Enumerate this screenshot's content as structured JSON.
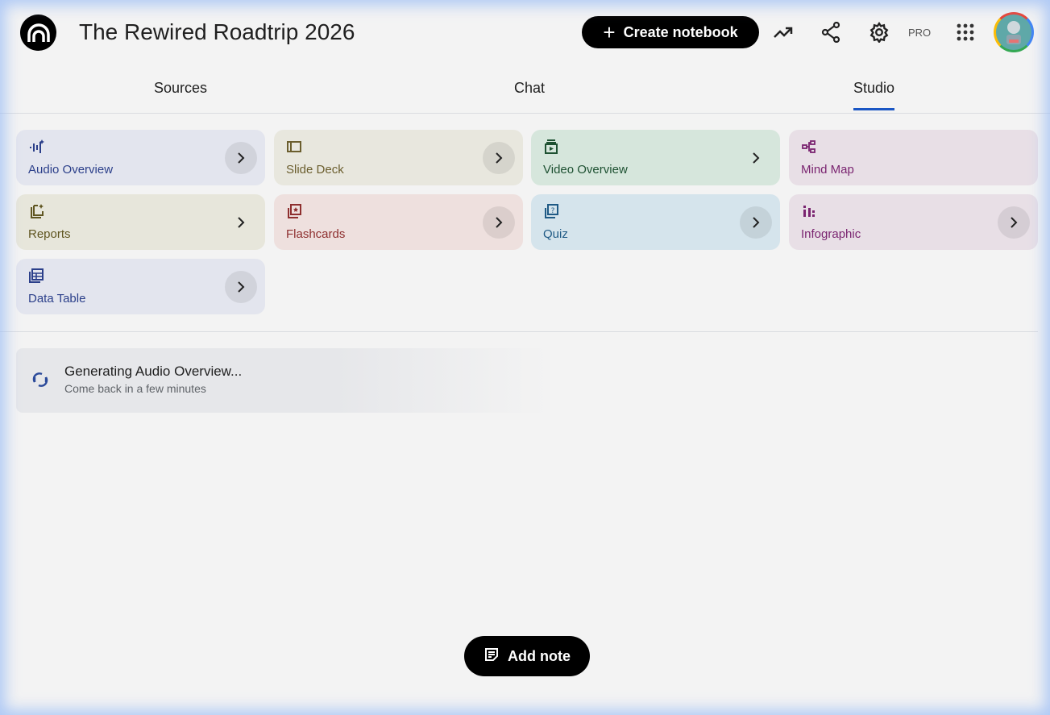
{
  "header": {
    "title": "The Rewired Roadtrip 2026",
    "create_label": "Create notebook",
    "pro_label": "PRO"
  },
  "tabs": [
    {
      "label": "Sources"
    },
    {
      "label": "Chat"
    },
    {
      "label": "Studio",
      "active": true
    }
  ],
  "studio_tools": [
    {
      "label": "Audio Overview",
      "icon": "audio-waveform-icon",
      "bg": "#e3e5ee",
      "color": "#2b3f8a"
    },
    {
      "label": "Slide Deck",
      "icon": "slides-icon",
      "bg": "#e8e7de",
      "color": "#6b5e2e"
    },
    {
      "label": "Video Overview",
      "icon": "video-icon",
      "bg": "#d6e6dc",
      "color": "#1e5132"
    },
    {
      "label": "Mind Map",
      "icon": "mind-map-icon",
      "bg": "#e8dfe6",
      "color": "#7a2470"
    },
    {
      "label": "Reports",
      "icon": "reports-icon",
      "bg": "#e7e6db",
      "color": "#5f5520"
    },
    {
      "label": "Flashcards",
      "icon": "flashcards-icon",
      "bg": "#eee0de",
      "color": "#8e2f2f"
    },
    {
      "label": "Quiz",
      "icon": "quiz-icon",
      "bg": "#d5e4ec",
      "color": "#1f5a85"
    },
    {
      "label": "Infographic",
      "icon": "infographic-icon",
      "bg": "#e8dfe6",
      "color": "#7a2470"
    },
    {
      "label": "Data Table",
      "icon": "table-icon",
      "bg": "#e3e5ee",
      "color": "#2b3f8a"
    }
  ],
  "generating": {
    "title": "Generating Audio Overview...",
    "subtitle": "Come back in a few minutes"
  },
  "add_note_label": "Add note",
  "accent": "#1a56c4"
}
